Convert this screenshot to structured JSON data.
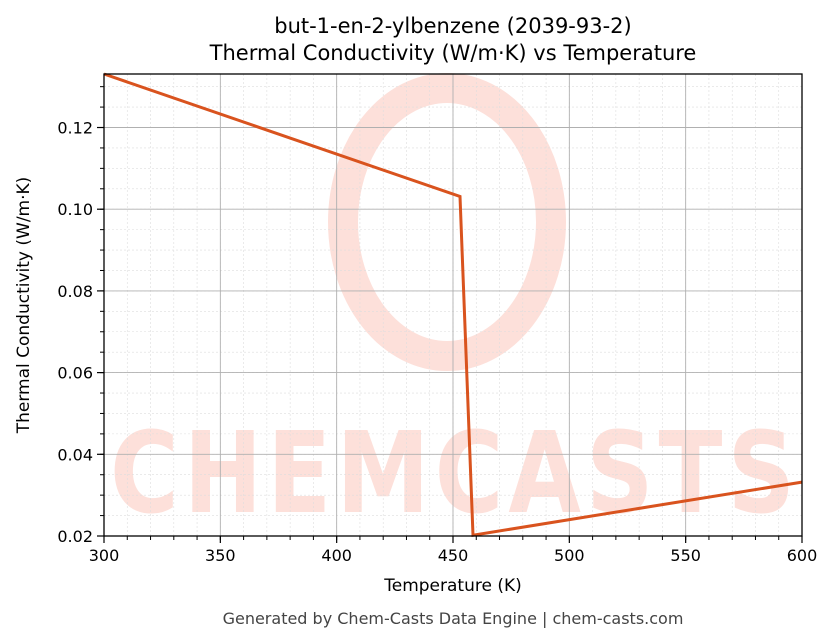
{
  "chart_data": {
    "type": "line",
    "title": "but-1-en-2-ylbenzene (2039-93-2)",
    "subtitle": "Thermal Conductivity (W/m·K) vs Temperature",
    "xlabel": "Temperature (K)",
    "ylabel": "Thermal Conductivity (W/m·K)",
    "xlim": [
      300,
      600
    ],
    "ylim": [
      0.02,
      0.1331
    ],
    "x_ticks": [
      300,
      350,
      400,
      450,
      500,
      550,
      600
    ],
    "x_tick_labels": [
      "300",
      "350",
      "400",
      "450",
      "500",
      "550",
      "600"
    ],
    "y_ticks": [
      0.02,
      0.04,
      0.06,
      0.08,
      0.1,
      0.12
    ],
    "y_tick_labels": [
      "0.02",
      "0.04",
      "0.06",
      "0.08",
      "0.10",
      "0.12"
    ],
    "grid": true,
    "minor_grid": true,
    "legend": null,
    "series": [
      {
        "name": "Thermal Conductivity",
        "color": "#d9531e",
        "x": [
          300,
          453,
          458.6,
          600
        ],
        "y": [
          0.1331,
          0.1031,
          0.0202,
          0.0332
        ]
      }
    ]
  },
  "footer": "Generated by Chem-Casts Data Engine | chem-casts.com",
  "watermark": "CHEMCASTS",
  "colors": {
    "line": "#d9531e",
    "watermark": "#fde0da",
    "grid_major": "#b0b0b0",
    "grid_minor": "#dddddd"
  }
}
